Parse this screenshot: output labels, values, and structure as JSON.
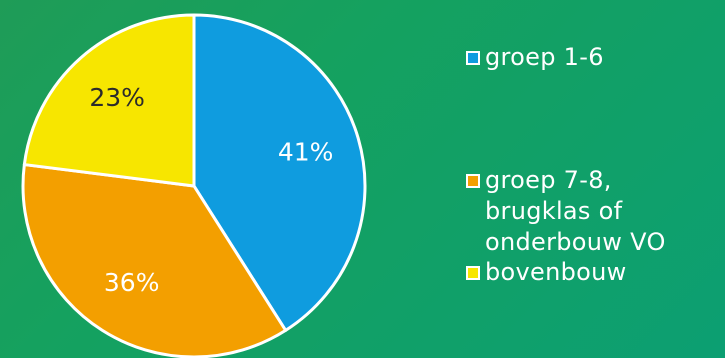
{
  "chart_data": {
    "type": "pie",
    "title": "",
    "categories": [
      "groep 1-6",
      "groep 7-8,\nbrugklas of\nonderbouw VO",
      "bovenbouw"
    ],
    "values": [
      41,
      36,
      23
    ],
    "value_labels": [
      "41%",
      "36%",
      "23%"
    ],
    "legend_position": "right",
    "colors": {
      "slice_1": "#0f9cdf",
      "slice_2": "#f39f00",
      "slice_3": "#f7e600",
      "stroke": "#ffffff"
    }
  }
}
